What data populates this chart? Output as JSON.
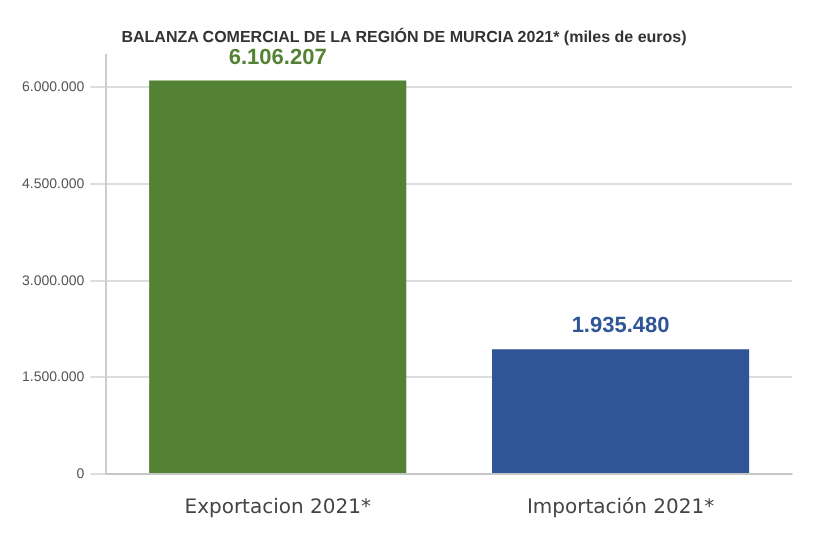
{
  "chart_data": {
    "type": "bar",
    "title": "BALANZA COMERCIAL DE LA REGIÓN DE MURCIA 2021* (miles de euros)",
    "categories": [
      "Exportacion 2021*",
      "Importación 2021*"
    ],
    "values": [
      6106207,
      1935480
    ],
    "colors": [
      "#548235",
      "#2f5597"
    ],
    "value_labels": [
      "6.106.207",
      "1.935.480"
    ],
    "ylim": [
      0,
      6500000
    ],
    "yticks": [
      0,
      {
        "value": 1500000,
        "label": "1.500.000"
      },
      {
        "value": 3000000,
        "label": "3.000.000"
      },
      {
        "value": 4500000,
        "label": "4.500.000"
      },
      {
        "value": 6000000,
        "label": "6.000.000"
      }
    ],
    "grid": "y",
    "legend": false
  }
}
